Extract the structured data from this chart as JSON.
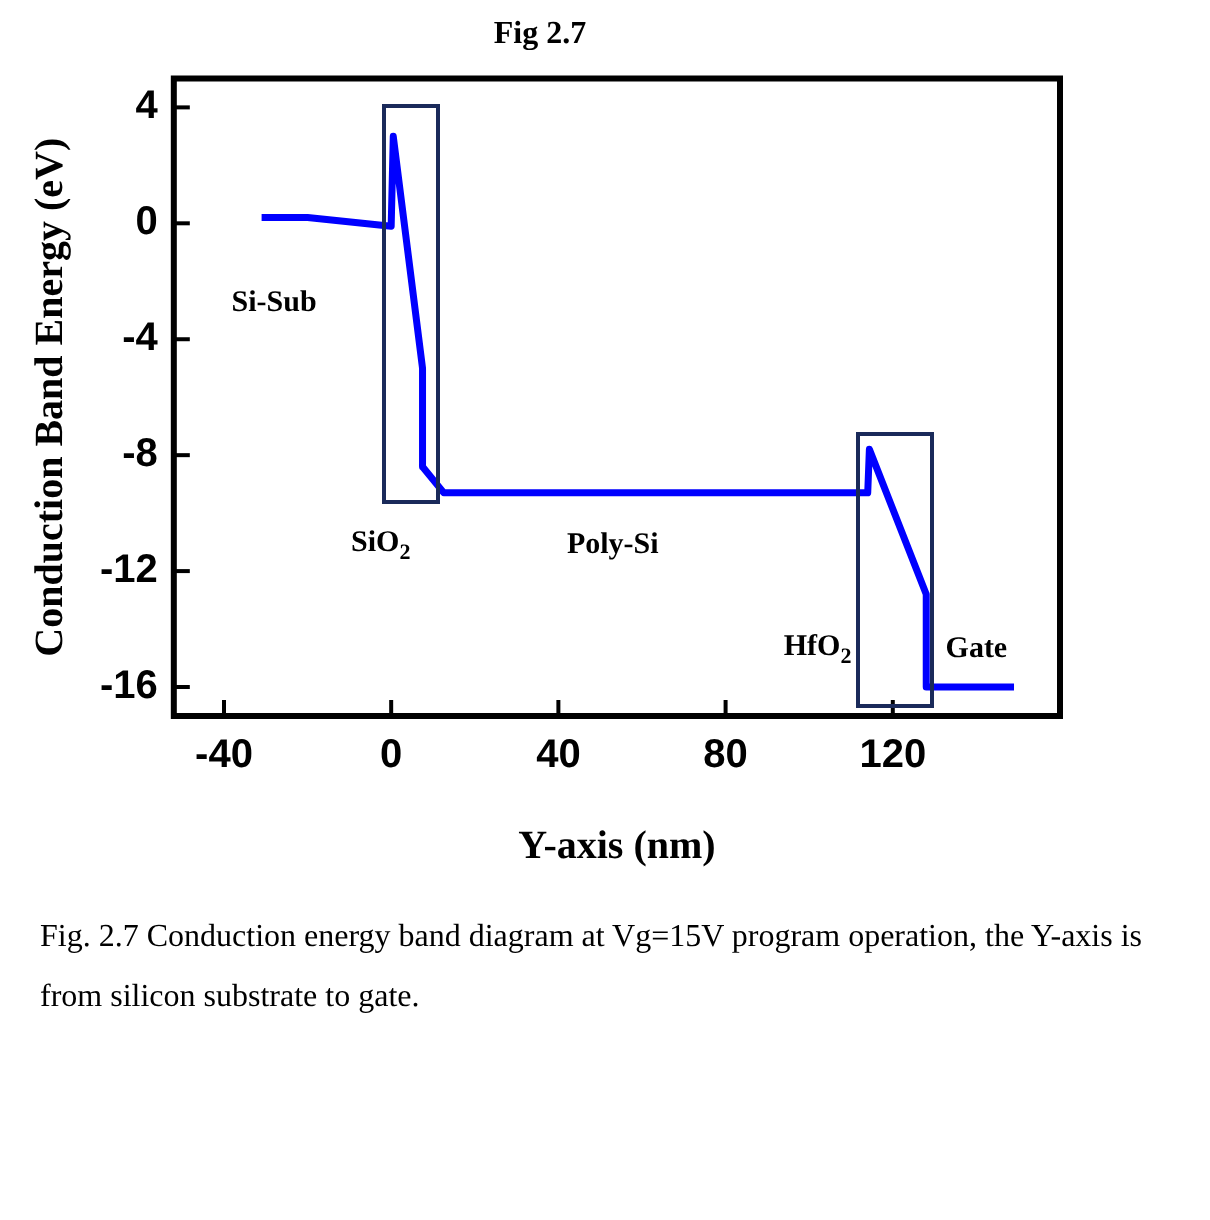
{
  "chart_data": {
    "type": "line",
    "title": "Fig 2.7",
    "xlabel": "Y-axis (nm)",
    "ylabel": "Conduction Band Energy (eV)",
    "x": [
      -31,
      -20,
      0,
      0.5,
      7.5,
      7.5,
      12.6,
      114,
      114.4,
      128,
      128,
      149
    ],
    "series": [
      {
        "color": "#0000ff",
        "values": [
          0.2,
          0.2,
          -0.1,
          3.0,
          -5.0,
          -8.4,
          -9.3,
          -9.3,
          -7.8,
          -12.8,
          -16,
          -16
        ]
      }
    ],
    "xlim": [
      -52,
      160
    ],
    "xticks": [
      -40,
      0,
      40,
      80,
      120
    ],
    "ylim": [
      -17,
      5
    ],
    "yticks": [
      -16,
      -12,
      -8,
      -4,
      0,
      4
    ],
    "grid": false,
    "legend": false,
    "marker": "none",
    "line_style": "solid",
    "annotations": [
      "Si-Sub",
      "SiO$_{2}$",
      "Poly-Si",
      "HfO$_{2}$",
      "Gate",
      "Fig. 2.7 Conduction energy band diagram at Vg=15V program operation, the Y-axis is from silicon substrate to gate."
    ]
  }
}
